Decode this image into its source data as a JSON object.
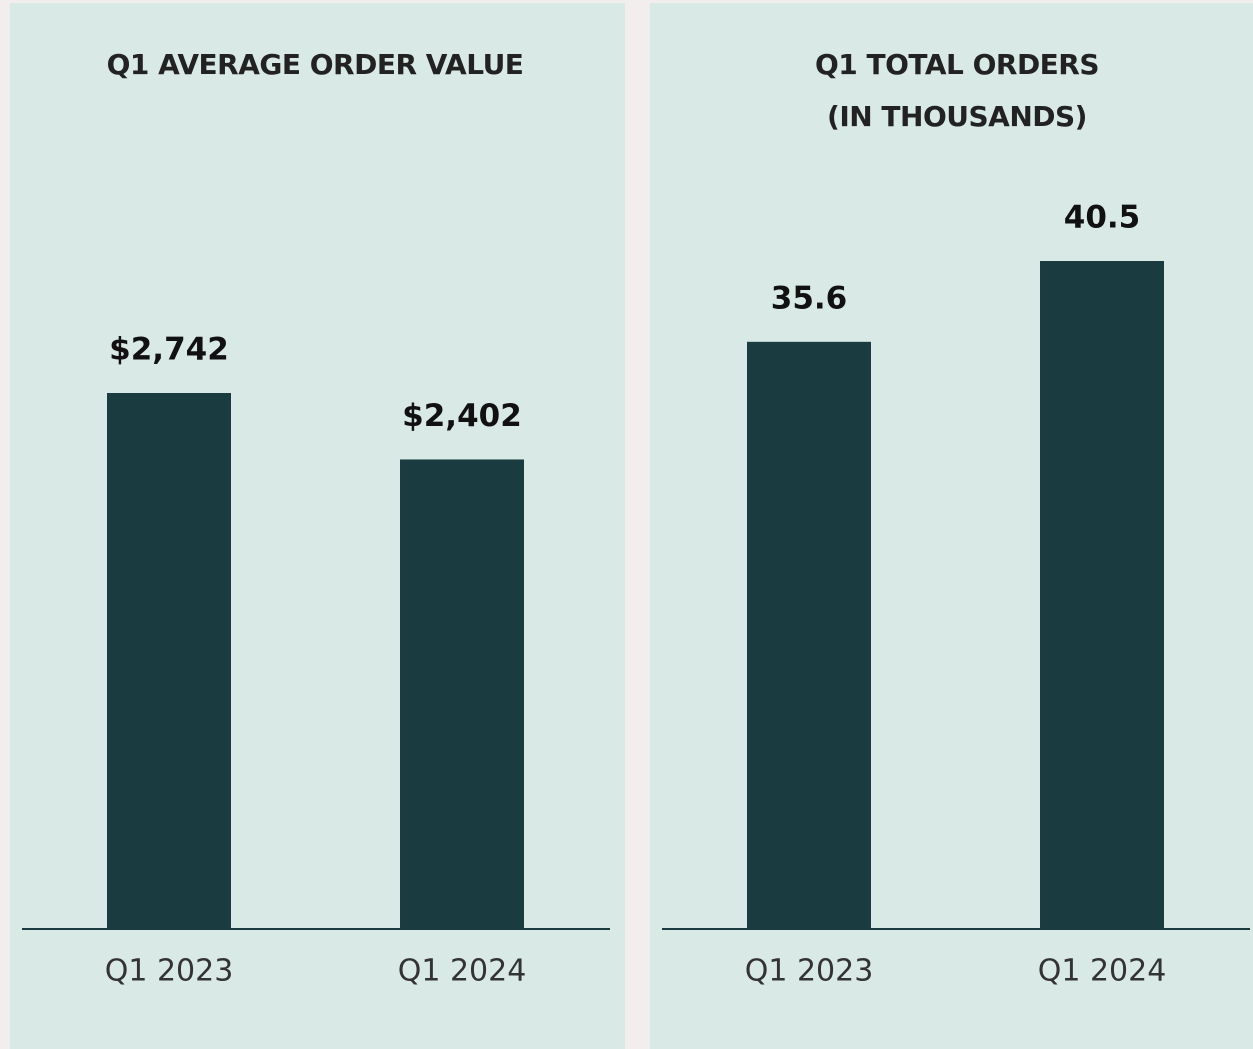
{
  "chart_data": [
    {
      "type": "bar",
      "title": "Q1 AVERAGE ORDER VALUE",
      "categories": [
        "Q1 2023",
        "Q1 2024"
      ],
      "values": [
        2742,
        2402
      ],
      "value_labels": [
        "$2,742",
        "$2,402"
      ],
      "color": "#1a3c40"
    },
    {
      "type": "bar",
      "title": "Q1 TOTAL ORDERS",
      "subtitle": "(IN THOUSANDS)",
      "categories": [
        "Q1 2023",
        "Q1 2024"
      ],
      "values": [
        35.6,
        40.5
      ],
      "color": "#1a3c40"
    }
  ]
}
